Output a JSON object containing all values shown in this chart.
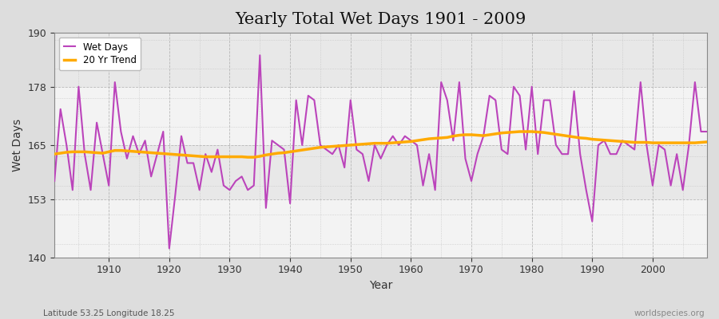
{
  "title": "Yearly Total Wet Days 1901 - 2009",
  "xlabel": "Year",
  "ylabel": "Wet Days",
  "subtitle": "Latitude 53.25 Longitude 18.25",
  "watermark": "worldspecies.org",
  "ylim": [
    140,
    190
  ],
  "yticks": [
    140,
    153,
    165,
    178,
    190
  ],
  "xlim": [
    1901,
    2009
  ],
  "fig_bg_color": "#dddddd",
  "plot_bg_color": "#e8e8e8",
  "wet_days_color": "#bb44bb",
  "trend_color": "#ffaa00",
  "years": [
    1901,
    1902,
    1903,
    1904,
    1905,
    1906,
    1907,
    1908,
    1909,
    1910,
    1911,
    1912,
    1913,
    1914,
    1915,
    1916,
    1917,
    1918,
    1919,
    1920,
    1921,
    1922,
    1923,
    1924,
    1925,
    1926,
    1927,
    1928,
    1929,
    1930,
    1931,
    1932,
    1933,
    1934,
    1935,
    1936,
    1937,
    1938,
    1939,
    1940,
    1941,
    1942,
    1943,
    1944,
    1945,
    1946,
    1947,
    1948,
    1949,
    1950,
    1951,
    1952,
    1953,
    1954,
    1955,
    1956,
    1957,
    1958,
    1959,
    1960,
    1961,
    1962,
    1963,
    1964,
    1965,
    1966,
    1967,
    1968,
    1969,
    1970,
    1971,
    1972,
    1973,
    1974,
    1975,
    1976,
    1977,
    1978,
    1979,
    1980,
    1981,
    1982,
    1983,
    1984,
    1985,
    1986,
    1987,
    1988,
    1989,
    1990,
    1991,
    1992,
    1993,
    1994,
    1995,
    1996,
    1997,
    1998,
    1999,
    2000,
    2001,
    2002,
    2003,
    2004,
    2005,
    2006,
    2007,
    2008,
    2009
  ],
  "wet_days": [
    157,
    173,
    165,
    155,
    178,
    163,
    155,
    170,
    163,
    156,
    179,
    168,
    162,
    167,
    163,
    166,
    158,
    163,
    168,
    142,
    154,
    167,
    161,
    161,
    155,
    163,
    159,
    164,
    156,
    155,
    157,
    158,
    155,
    156,
    185,
    151,
    166,
    165,
    164,
    152,
    175,
    165,
    176,
    175,
    165,
    164,
    163,
    165,
    160,
    175,
    164,
    163,
    157,
    165,
    162,
    165,
    167,
    165,
    167,
    166,
    165,
    156,
    163,
    155,
    179,
    175,
    166,
    179,
    162,
    157,
    163,
    167,
    176,
    175,
    164,
    163,
    178,
    176,
    164,
    178,
    163,
    175,
    175,
    165,
    163,
    163,
    177,
    163,
    155,
    148,
    165,
    166,
    163,
    163,
    166,
    165,
    164,
    179,
    165,
    156,
    165,
    164,
    156,
    163,
    155,
    165,
    179,
    168,
    168
  ],
  "trend": [
    163.0,
    163.2,
    163.4,
    163.5,
    163.5,
    163.5,
    163.4,
    163.3,
    163.2,
    163.5,
    163.8,
    163.8,
    163.7,
    163.6,
    163.5,
    163.4,
    163.3,
    163.2,
    163.1,
    163.0,
    162.9,
    162.8,
    162.7,
    162.6,
    162.5,
    162.4,
    162.4,
    162.4,
    162.4,
    162.4,
    162.4,
    162.4,
    162.3,
    162.3,
    162.5,
    162.8,
    163.0,
    163.2,
    163.3,
    163.5,
    163.7,
    163.9,
    164.1,
    164.3,
    164.5,
    164.6,
    164.7,
    164.8,
    164.9,
    165.0,
    165.1,
    165.2,
    165.3,
    165.4,
    165.4,
    165.4,
    165.5,
    165.6,
    165.7,
    165.8,
    166.0,
    166.2,
    166.4,
    166.5,
    166.6,
    166.7,
    167.0,
    167.2,
    167.3,
    167.3,
    167.2,
    167.1,
    167.3,
    167.5,
    167.7,
    167.8,
    167.9,
    168.0,
    168.0,
    168.0,
    167.9,
    167.8,
    167.6,
    167.4,
    167.2,
    167.0,
    166.8,
    166.6,
    166.5,
    166.3,
    166.2,
    166.1,
    166.0,
    165.9,
    165.8,
    165.7,
    165.6,
    165.6,
    165.6,
    165.5,
    165.5,
    165.5,
    165.5,
    165.5,
    165.5,
    165.5,
    165.5,
    165.6,
    165.7
  ]
}
